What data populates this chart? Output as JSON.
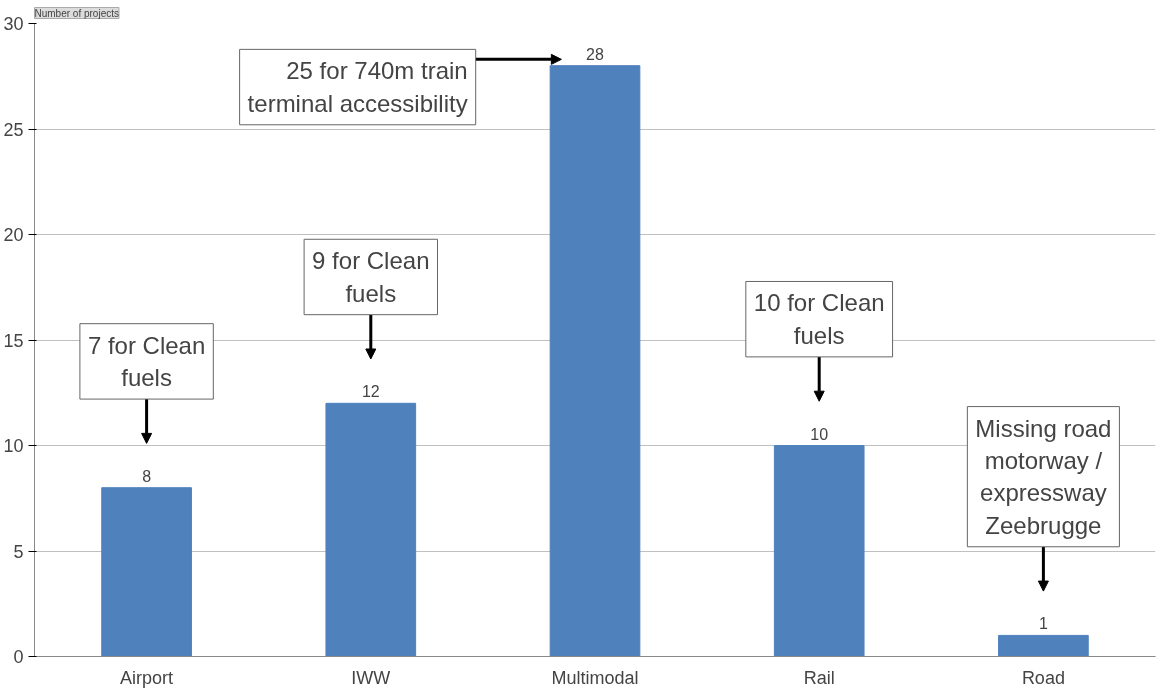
{
  "chart_data": {
    "type": "bar",
    "ylabel": "Number of projects",
    "categories": [
      "Airport",
      "IWW",
      "Multimodal",
      "Rail",
      "Road"
    ],
    "values": [
      8,
      12,
      28,
      10,
      1
    ],
    "color": "#4f81bd",
    "ylim": [
      0,
      30
    ],
    "yticks": [
      0,
      5,
      10,
      15,
      20,
      25,
      30
    ],
    "grid": "y",
    "data_labels": true,
    "annotations": [
      "7 for Clean\nfuels",
      "9 for Clean\nfuels",
      "25 for 740m train\nterminal accessibility",
      "10 for Clean\nfuels",
      "Missing road\nmotorway /\nexpressway\nZeebrugge"
    ]
  }
}
